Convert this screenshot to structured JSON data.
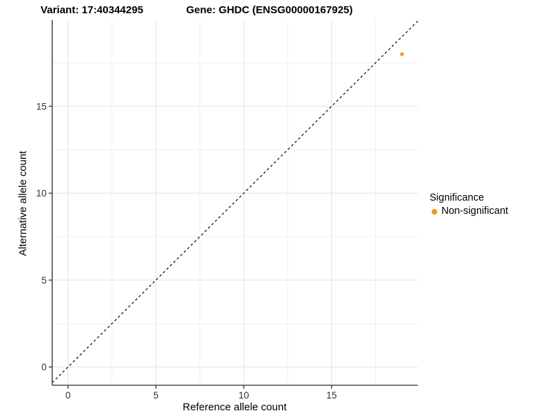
{
  "chart_data": {
    "type": "scatter",
    "title_left": "Variant: 17:40344295",
    "title_right": "Gene: GHDC (ENSG00000167925)",
    "xlabel": "Reference allele count",
    "ylabel": "Alternative allele count",
    "xlim": [
      -0.9,
      19.9
    ],
    "ylim": [
      -1.05,
      19.95
    ],
    "x_major_ticks": [
      0,
      5,
      10,
      15
    ],
    "x_minor_ticks": [
      2.5,
      7.5,
      12.5,
      17.5
    ],
    "y_major_ticks": [
      0,
      5,
      10,
      15
    ],
    "y_minor_ticks": [
      2.5,
      7.5,
      12.5,
      17.5
    ],
    "grid": true,
    "identity_line": {
      "slope": 1,
      "intercept": 0,
      "style": "dashed",
      "color": "#000000"
    },
    "series": [
      {
        "name": "Non-significant",
        "color": "#F7941D",
        "points": [
          {
            "x": 19,
            "y": 18
          }
        ]
      }
    ],
    "legend": {
      "title": "Significance",
      "position": "right",
      "items": [
        {
          "label": "Non-significant",
          "color": "#F7941D"
        }
      ]
    }
  },
  "colors": {
    "grid_major": "#E6E6E6",
    "grid_minor": "#EDEDED",
    "axis_line": "#4D4D4D",
    "tick_mark": "#333333",
    "tick_label": "#303030"
  }
}
